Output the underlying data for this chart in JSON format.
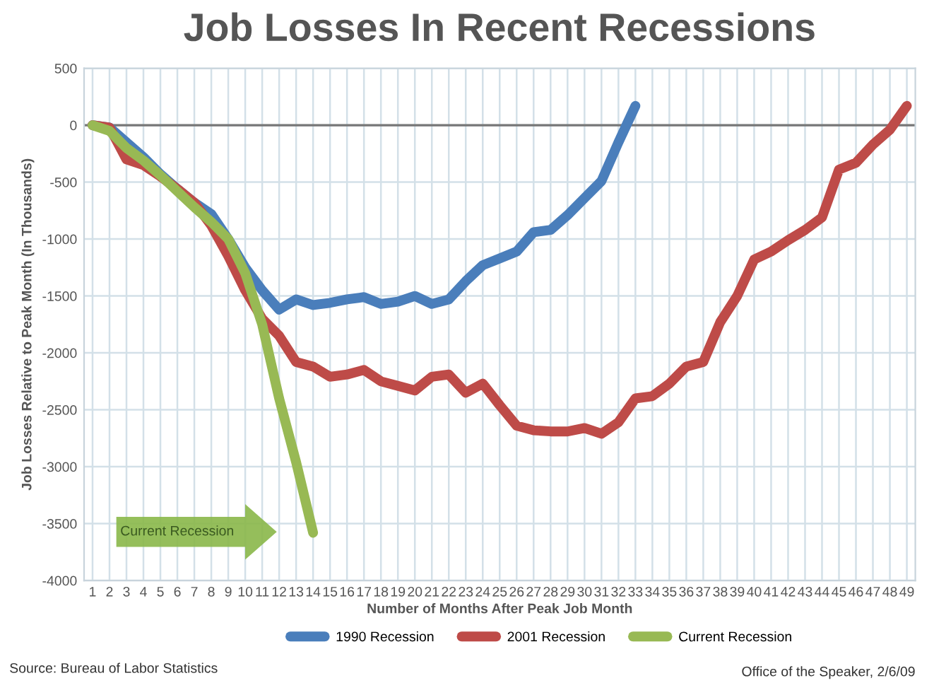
{
  "chart_data": {
    "type": "line",
    "title": "Job Losses In Recent Recessions",
    "xlabel": "Number of Months After Peak Job Month",
    "ylabel": "Job Losses Relative to Peak Month (In Thousands)",
    "categories": [
      "1",
      "2",
      "3",
      "4",
      "5",
      "6",
      "7",
      "8",
      "9",
      "10",
      "11",
      "12",
      "13",
      "14",
      "15",
      "16",
      "17",
      "18",
      "19",
      "20",
      "21",
      "22",
      "23",
      "24",
      "25",
      "26",
      "27",
      "28",
      "29",
      "30",
      "31",
      "32",
      "33",
      "34",
      "35",
      "36",
      "37",
      "38",
      "39",
      "40",
      "41",
      "42",
      "43",
      "44",
      "45",
      "46",
      "47",
      "48",
      "49"
    ],
    "series": [
      {
        "name": "1990 Recession",
        "color": "#4a7ebb",
        "values": [
          0,
          -20,
          -150,
          -280,
          -430,
          -560,
          -680,
          -780,
          -1000,
          -1250,
          -1450,
          -1620,
          -1530,
          -1580,
          -1560,
          -1530,
          -1510,
          -1570,
          -1550,
          -1500,
          -1570,
          -1530,
          -1370,
          -1230,
          -1170,
          -1110,
          -940,
          -920,
          -790,
          -640,
          -490,
          -150,
          170,
          null,
          null,
          null,
          null,
          null,
          null,
          null,
          null,
          null,
          null,
          null,
          null,
          null,
          null,
          null,
          null
        ]
      },
      {
        "name": "2001 Recession",
        "color": "#be4b48",
        "values": [
          0,
          -20,
          -300,
          -350,
          -450,
          -560,
          -680,
          -880,
          -1150,
          -1450,
          -1700,
          -1850,
          -2080,
          -2120,
          -2210,
          -2190,
          -2150,
          -2250,
          -2290,
          -2330,
          -2210,
          -2190,
          -2350,
          -2270,
          -2460,
          -2640,
          -2680,
          -2690,
          -2690,
          -2660,
          -2710,
          -2610,
          -2400,
          -2380,
          -2270,
          -2120,
          -2080,
          -1730,
          -1500,
          -1180,
          -1110,
          -1010,
          -920,
          -810,
          -390,
          -330,
          -170,
          -40,
          170
        ]
      },
      {
        "name": "Current Recession",
        "color": "#98b954",
        "values": [
          0,
          -50,
          -200,
          -310,
          -440,
          -580,
          -720,
          -850,
          -1000,
          -1300,
          -1750,
          -2400,
          -2960,
          -3580,
          null,
          null,
          null,
          null,
          null,
          null,
          null,
          null,
          null,
          null,
          null,
          null,
          null,
          null,
          null,
          null,
          null,
          null,
          null,
          null,
          null,
          null,
          null,
          null,
          null,
          null,
          null,
          null,
          null,
          null,
          null,
          null,
          null,
          null,
          null
        ]
      }
    ],
    "ylim": [
      -4000,
      500
    ],
    "yticks": [
      -4000,
      -3500,
      -3000,
      -2500,
      -2000,
      -1500,
      -1000,
      -500,
      0,
      500
    ],
    "ref_lines": [
      {
        "axis": "y",
        "value": 0,
        "color": "#777777"
      }
    ],
    "grid": true,
    "legend": "bottom",
    "marker": "none",
    "line_style": "solid",
    "annotations": [
      "Current Recession",
      "Source: Bureau of Labor Statistics",
      "Office of the Speaker, 2/6/09"
    ]
  }
}
